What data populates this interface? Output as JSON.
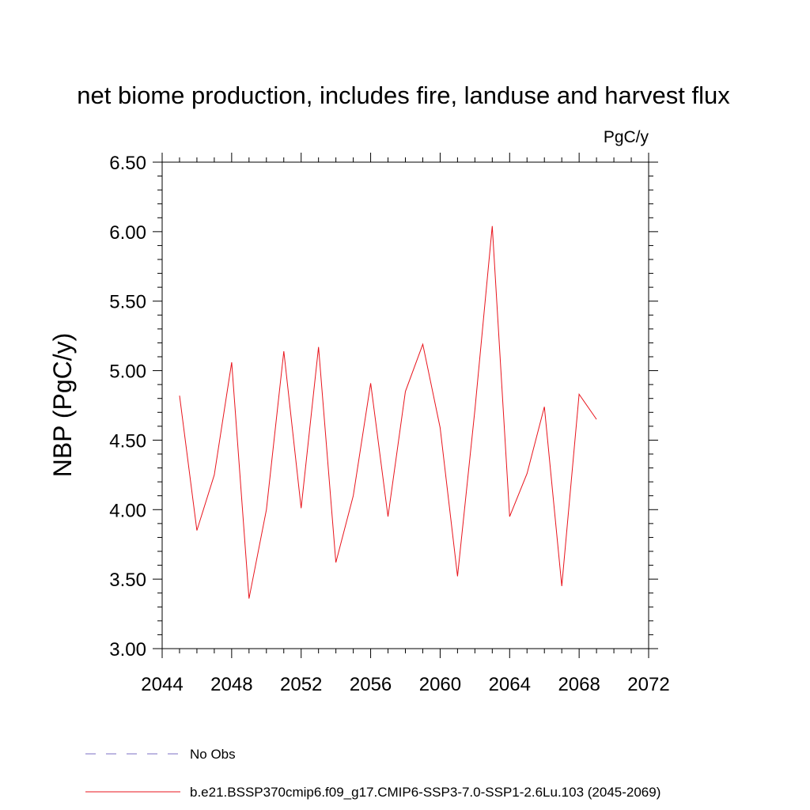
{
  "chart_data": {
    "type": "line",
    "title": "net biome production, includes fire, landuse and harvest flux",
    "units": "PgC/y",
    "ylabel": "NBP  (PgC/y)",
    "xlabel": "",
    "xlim": [
      2044,
      2072
    ],
    "ylim": [
      3.0,
      6.5
    ],
    "x_ticks": [
      "2044",
      "2048",
      "2052",
      "2056",
      "2060",
      "2064",
      "2068",
      "2072"
    ],
    "y_ticks": [
      "3.00",
      "3.50",
      "4.00",
      "4.50",
      "5.00",
      "5.50",
      "6.00",
      "6.50"
    ],
    "x_tick_values": [
      2044,
      2048,
      2052,
      2056,
      2060,
      2064,
      2068,
      2072
    ],
    "y_tick_values": [
      3.0,
      3.5,
      4.0,
      4.5,
      5.0,
      5.5,
      6.0,
      6.5
    ],
    "grid": false,
    "legend_position": "bottom",
    "legend": [
      {
        "label": "No Obs",
        "style": "dashed",
        "color": "#7b6fc6"
      },
      {
        "label": "b.e21.BSSP370cmip6.f09_g17.CMIP6-SSP3-7.0-SSP1-2.6Lu.103 (2045-2069)",
        "style": "solid",
        "color": "#e8141c"
      }
    ],
    "series": [
      {
        "name": "b.e21.BSSP370cmip6.f09_g17.CMIP6-SSP3-7.0-SSP1-2.6Lu.103 (2045-2069)",
        "color": "#e8141c",
        "x": [
          2045,
          2046,
          2047,
          2048,
          2049,
          2050,
          2051,
          2052,
          2053,
          2054,
          2055,
          2056,
          2057,
          2058,
          2059,
          2060,
          2061,
          2062,
          2063,
          2064,
          2065,
          2066,
          2067,
          2068,
          2069
        ],
        "values": [
          4.82,
          3.85,
          4.25,
          5.06,
          3.36,
          4.0,
          5.14,
          4.01,
          5.17,
          3.62,
          4.1,
          4.91,
          3.95,
          4.85,
          5.19,
          4.59,
          3.52,
          4.72,
          6.04,
          3.95,
          4.26,
          4.74,
          3.45,
          4.83,
          4.65
        ]
      }
    ]
  }
}
